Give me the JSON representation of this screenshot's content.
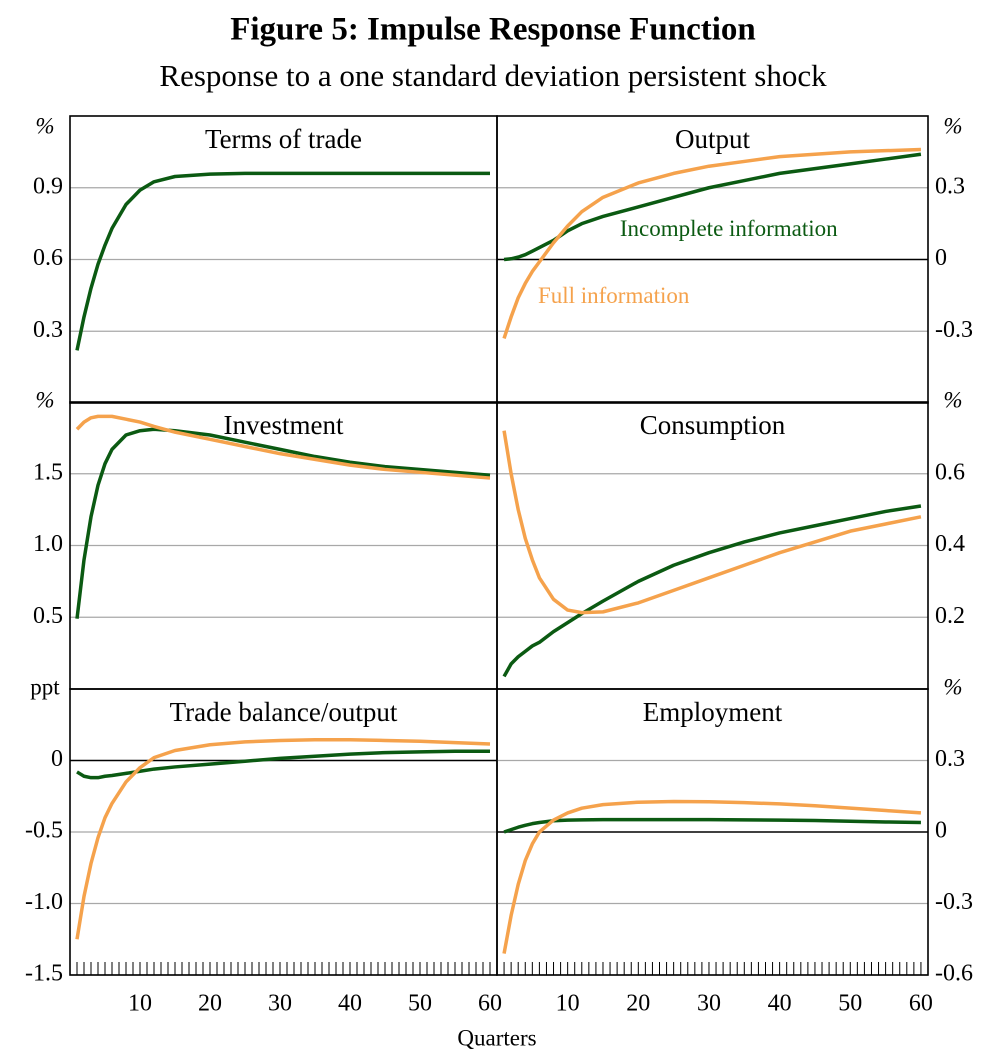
{
  "figure": {
    "title": "Figure 5: Impulse Response Function",
    "subtitle": "Response to a one standard deviation persistent shock",
    "x_label": "Quarters"
  },
  "chart_data": [
    {
      "type": "line",
      "title": "Terms of trade",
      "y_unit": "%",
      "y_axis_side": "left",
      "x": [
        1,
        2,
        3,
        4,
        5,
        6,
        8,
        10,
        12,
        15,
        20,
        25,
        30,
        35,
        40,
        45,
        50,
        55,
        60
      ],
      "xlim": [
        0,
        61
      ],
      "ylim": [
        0,
        1.2
      ],
      "yticks": [
        0.3,
        0.6,
        0.9
      ],
      "grid": true,
      "series": [
        {
          "color": "#0b5a12",
          "values": [
            0.22,
            0.36,
            0.48,
            0.58,
            0.66,
            0.73,
            0.83,
            0.89,
            0.925,
            0.947,
            0.957,
            0.96,
            0.96,
            0.96,
            0.96,
            0.96,
            0.96,
            0.96,
            0.96
          ]
        }
      ]
    },
    {
      "type": "line",
      "title": "Output",
      "y_unit": "%",
      "y_axis_side": "right",
      "x": [
        1,
        2,
        3,
        4,
        5,
        6,
        8,
        10,
        12,
        15,
        20,
        25,
        30,
        35,
        40,
        45,
        50,
        55,
        60
      ],
      "xlim": [
        0,
        61
      ],
      "ylim": [
        -0.6,
        0.6
      ],
      "yticks": [
        -0.3,
        0.0,
        0.3
      ],
      "grid": true,
      "zero_line": true,
      "series": [
        {
          "name": "Incomplete information",
          "color": "#0b5a12",
          "values": [
            0,
            0.003,
            0.01,
            0.02,
            0.035,
            0.05,
            0.08,
            0.12,
            0.15,
            0.18,
            0.22,
            0.26,
            0.3,
            0.33,
            0.36,
            0.38,
            0.4,
            0.42,
            0.44
          ]
        },
        {
          "name": "Full information",
          "color": "#f5a24c",
          "values": [
            -0.33,
            -0.24,
            -0.16,
            -0.1,
            -0.05,
            -0.01,
            0.07,
            0.14,
            0.2,
            0.26,
            0.32,
            0.36,
            0.39,
            0.41,
            0.43,
            0.44,
            0.45,
            0.455,
            0.46
          ]
        }
      ]
    },
    {
      "type": "line",
      "title": "Investment",
      "y_unit": "%",
      "y_axis_side": "left",
      "x": [
        1,
        2,
        3,
        4,
        5,
        6,
        8,
        10,
        12,
        15,
        20,
        25,
        30,
        35,
        40,
        45,
        50,
        55,
        60
      ],
      "xlim": [
        0,
        61
      ],
      "ylim": [
        0,
        2
      ],
      "yticks": [
        0.5,
        {
          "value": 1,
          "label": "1.0"
        },
        1.5
      ],
      "grid": true,
      "series": [
        {
          "color": "#0b5a12",
          "values": [
            0.49,
            0.9,
            1.2,
            1.42,
            1.57,
            1.67,
            1.77,
            1.8,
            1.81,
            1.8,
            1.77,
            1.72,
            1.67,
            1.62,
            1.58,
            1.55,
            1.53,
            1.51,
            1.49
          ]
        },
        {
          "color": "#f5a24c",
          "values": [
            1.81,
            1.86,
            1.89,
            1.9,
            1.9,
            1.9,
            1.88,
            1.86,
            1.83,
            1.79,
            1.74,
            1.69,
            1.64,
            1.6,
            1.56,
            1.53,
            1.51,
            1.49,
            1.47
          ]
        }
      ]
    },
    {
      "type": "line",
      "title": "Consumption",
      "y_unit": "%",
      "y_axis_side": "right",
      "x": [
        1,
        2,
        3,
        4,
        5,
        6,
        8,
        10,
        12,
        15,
        20,
        25,
        30,
        35,
        40,
        45,
        50,
        55,
        60
      ],
      "xlim": [
        0,
        61
      ],
      "ylim": [
        0,
        0.8
      ],
      "yticks": [
        0.2,
        0.4,
        0.6
      ],
      "grid": true,
      "series": [
        {
          "color": "#0b5a12",
          "values": [
            0.035,
            0.07,
            0.09,
            0.105,
            0.12,
            0.13,
            0.16,
            0.185,
            0.21,
            0.245,
            0.3,
            0.345,
            0.38,
            0.41,
            0.435,
            0.455,
            0.475,
            0.495,
            0.51
          ]
        },
        {
          "color": "#f5a24c",
          "values": [
            0.72,
            0.6,
            0.5,
            0.42,
            0.36,
            0.31,
            0.25,
            0.22,
            0.213,
            0.215,
            0.24,
            0.275,
            0.31,
            0.345,
            0.38,
            0.41,
            0.44,
            0.46,
            0.48
          ]
        }
      ]
    },
    {
      "type": "line",
      "title": "Trade balance/output",
      "y_unit": "ppt",
      "y_axis_side": "left",
      "x": [
        1,
        2,
        3,
        4,
        5,
        6,
        8,
        10,
        12,
        15,
        20,
        25,
        30,
        35,
        40,
        45,
        50,
        55,
        60
      ],
      "xlim": [
        0,
        61
      ],
      "xticks": [
        10,
        20,
        30,
        40,
        50,
        60
      ],
      "xminorticks": [
        1,
        2,
        3,
        4,
        5,
        6,
        7,
        8,
        9,
        10,
        11,
        12,
        13,
        14,
        15,
        16,
        17,
        18,
        19,
        20,
        21,
        22,
        23,
        24,
        25,
        26,
        27,
        28,
        29,
        30,
        31,
        32,
        33,
        34,
        35,
        36,
        37,
        38,
        39,
        40,
        41,
        42,
        43,
        44,
        45,
        46,
        47,
        48,
        49,
        50,
        51,
        52,
        53,
        54,
        55,
        56,
        57,
        58,
        59,
        60
      ],
      "ylim": [
        -1.5,
        0.5
      ],
      "yticks": [
        -1.5,
        {
          "value": -1,
          "label": "-1.0"
        },
        -0.5,
        0.0
      ],
      "grid": true,
      "zero_line": true,
      "series": [
        {
          "color": "#0b5a12",
          "values": [
            -0.08,
            -0.11,
            -0.12,
            -0.12,
            -0.11,
            -0.105,
            -0.09,
            -0.075,
            -0.06,
            -0.045,
            -0.025,
            -0.005,
            0.015,
            0.03,
            0.045,
            0.055,
            0.06,
            0.065,
            0.065
          ]
        },
        {
          "color": "#f5a24c",
          "values": [
            -1.25,
            -0.95,
            -0.72,
            -0.54,
            -0.4,
            -0.3,
            -0.15,
            -0.05,
            0.02,
            0.07,
            0.11,
            0.13,
            0.14,
            0.145,
            0.145,
            0.14,
            0.135,
            0.125,
            0.115
          ]
        }
      ]
    },
    {
      "type": "line",
      "title": "Employment",
      "y_unit": "%",
      "y_axis_side": "right",
      "x": [
        1,
        2,
        3,
        4,
        5,
        6,
        8,
        10,
        12,
        15,
        20,
        25,
        30,
        35,
        40,
        45,
        50,
        55,
        60
      ],
      "xlim": [
        0,
        61
      ],
      "xticks": [
        10,
        20,
        30,
        40,
        50,
        60
      ],
      "xminorticks": [
        1,
        2,
        3,
        4,
        5,
        6,
        7,
        8,
        9,
        10,
        11,
        12,
        13,
        14,
        15,
        16,
        17,
        18,
        19,
        20,
        21,
        22,
        23,
        24,
        25,
        26,
        27,
        28,
        29,
        30,
        31,
        32,
        33,
        34,
        35,
        36,
        37,
        38,
        39,
        40,
        41,
        42,
        43,
        44,
        45,
        46,
        47,
        48,
        49,
        50,
        51,
        52,
        53,
        54,
        55,
        56,
        57,
        58,
        59,
        60
      ],
      "ylim": [
        -0.6,
        0.6
      ],
      "yticks": [
        -0.6,
        -0.3,
        0.0,
        0.3
      ],
      "grid": true,
      "zero_line": true,
      "series": [
        {
          "color": "#0b5a12",
          "values": [
            0,
            0.01,
            0.02,
            0.028,
            0.035,
            0.04,
            0.047,
            0.05,
            0.051,
            0.052,
            0.052,
            0.052,
            0.052,
            0.051,
            0.05,
            0.048,
            0.045,
            0.042,
            0.04
          ]
        },
        {
          "color": "#f5a24c",
          "values": [
            -0.51,
            -0.35,
            -0.22,
            -0.12,
            -0.05,
            0,
            0.05,
            0.08,
            0.1,
            0.115,
            0.125,
            0.128,
            0.127,
            0.123,
            0.118,
            0.11,
            0.1,
            0.09,
            0.08
          ]
        }
      ]
    }
  ]
}
